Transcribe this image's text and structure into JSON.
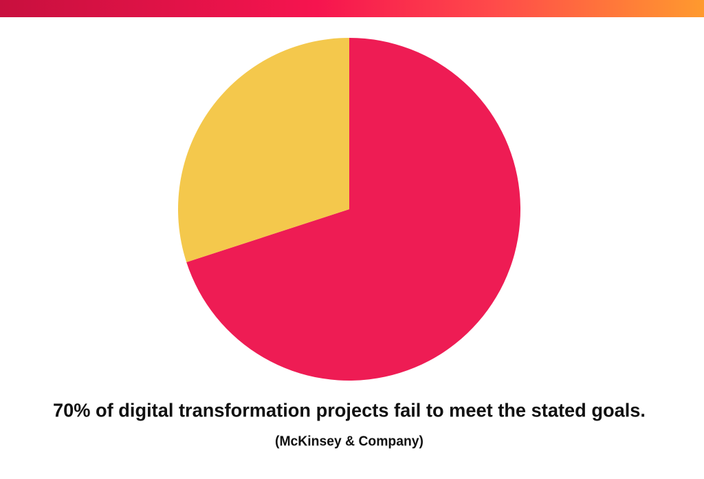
{
  "chart_data": {
    "type": "pie",
    "title": "70% of digital transformation projects fail to meet the stated goals.",
    "subtitle": "(McKinsey & Company)",
    "values": [
      70,
      30
    ],
    "colors": [
      "#ee1c54",
      "#f4c84c"
    ]
  }
}
